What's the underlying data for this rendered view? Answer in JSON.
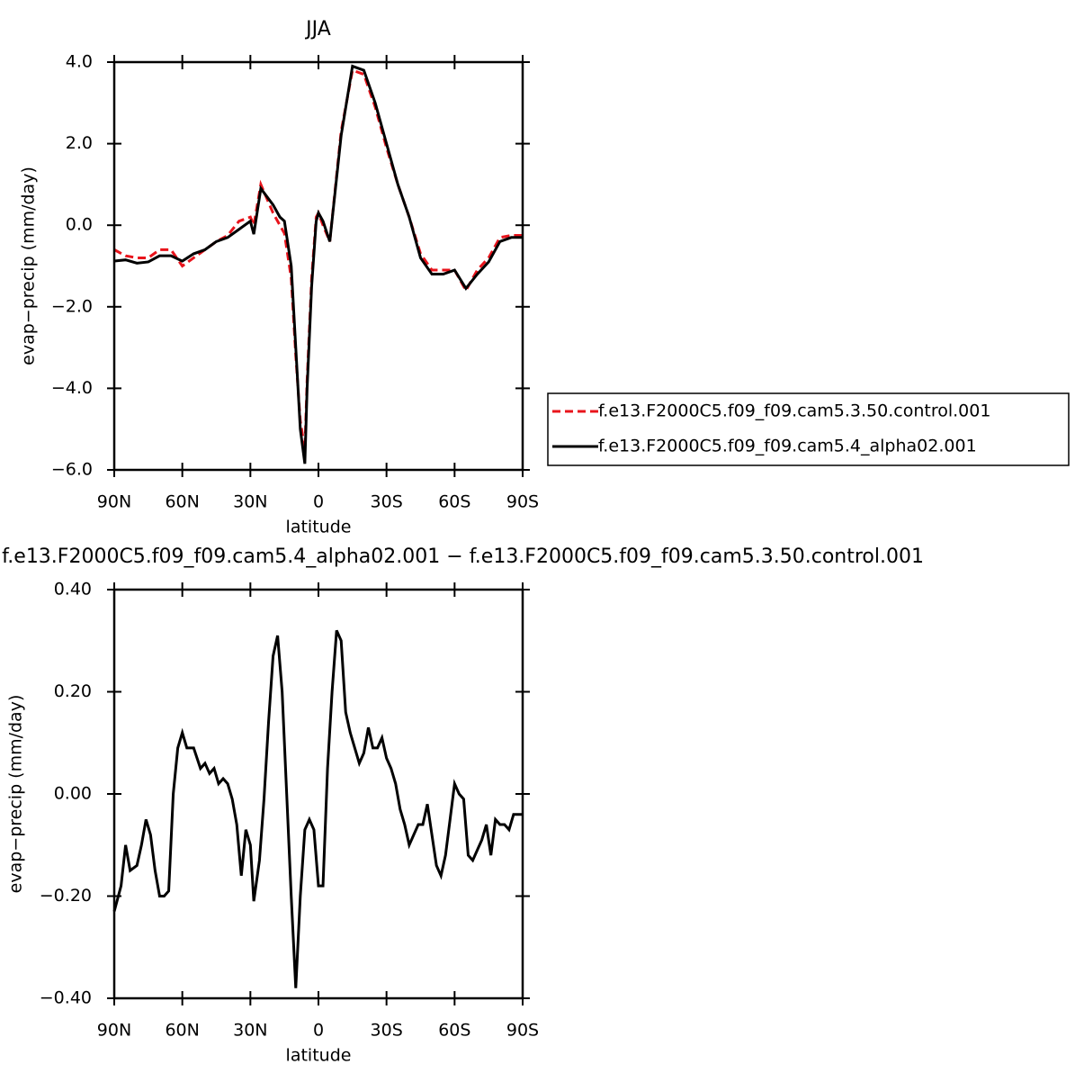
{
  "chart_data": [
    {
      "type": "line",
      "title": "JJA",
      "xlabel": "latitude",
      "ylabel": "evap−precip (mm/day)",
      "xlim": [
        90,
        -90
      ],
      "xticks": [
        {
          "value": 90,
          "label": "90N"
        },
        {
          "value": 60,
          "label": "60N"
        },
        {
          "value": 30,
          "label": "30N"
        },
        0,
        {
          "value": -30,
          "label": "30S"
        },
        {
          "value": -60,
          "label": "60S"
        },
        {
          "value": -90,
          "label": "90S"
        }
      ],
      "ylim": [
        -6,
        4
      ],
      "yticks": [
        {
          "value": -6,
          "label": "−6.0"
        },
        {
          "value": -4,
          "label": "−4.0"
        },
        {
          "value": -2,
          "label": "−2.0"
        },
        {
          "value": 0,
          "label": "0.0"
        },
        {
          "value": 2,
          "label": "2.0"
        },
        {
          "value": 4,
          "label": "4.0"
        }
      ],
      "legend": "right",
      "x": [
        90,
        85,
        80,
        75,
        70,
        65,
        60,
        55,
        50,
        45,
        40,
        35,
        30,
        28.5,
        25.4,
        20,
        17,
        15,
        12,
        10,
        8,
        6,
        5,
        3,
        1,
        0,
        -2,
        -5,
        -10,
        -15,
        -20,
        -25,
        -30,
        -35,
        -40,
        -45,
        -50,
        -55,
        -60,
        -65,
        -70,
        -75,
        -80,
        -85,
        -90
      ],
      "series": [
        {
          "name": "f.e13.F2000C5.f09_f09.cam5.3.50.control.001",
          "color": "#e8141c",
          "linestyle": "dashed",
          "values": [
            -0.6,
            -0.75,
            -0.8,
            -0.8,
            -0.6,
            -0.6,
            -1.0,
            -0.8,
            -0.6,
            -0.4,
            -0.25,
            0.1,
            0.2,
            0.0,
            1.0,
            0.3,
            0.0,
            -0.2,
            -1.3,
            -3.2,
            -4.8,
            -5.5,
            -3.8,
            -1.3,
            0.2,
            0.3,
            0.0,
            -0.4,
            2.3,
            3.8,
            3.7,
            2.9,
            1.9,
            1.0,
            0.2,
            -0.7,
            -1.1,
            -1.1,
            -1.1,
            -1.6,
            -1.1,
            -0.8,
            -0.3,
            -0.25,
            -0.25
          ]
        },
        {
          "name": "f.e13.F2000C5.f09_f09.cam5.4_alpha02.001",
          "color": "#000000",
          "linestyle": "solid",
          "values": [
            -0.88,
            -0.85,
            -0.93,
            -0.9,
            -0.75,
            -0.75,
            -0.88,
            -0.7,
            -0.6,
            -0.4,
            -0.3,
            -0.1,
            0.1,
            -0.22,
            0.9,
            0.5,
            0.2,
            0.1,
            -1.0,
            -3.0,
            -5.0,
            -5.85,
            -4.0,
            -1.5,
            0.1,
            0.3,
            0.1,
            -0.4,
            2.2,
            3.9,
            3.8,
            3.0,
            2.0,
            1.0,
            0.2,
            -0.8,
            -1.2,
            -1.2,
            -1.1,
            -1.55,
            -1.2,
            -0.9,
            -0.4,
            -0.3,
            -0.3
          ]
        }
      ]
    },
    {
      "type": "line",
      "title": "f.e13.F2000C5.f09_f09.cam5.4_alpha02.001 − f.e13.F2000C5.f09_f09.cam5.3.50.control.001",
      "xlabel": "latitude",
      "ylabel": "evap−precip (mm/day)",
      "xlim": [
        90,
        -90
      ],
      "xticks": [
        {
          "value": 90,
          "label": "90N"
        },
        {
          "value": 60,
          "label": "60N"
        },
        {
          "value": 30,
          "label": "30N"
        },
        0,
        {
          "value": -30,
          "label": "30S"
        },
        {
          "value": -60,
          "label": "60S"
        },
        {
          "value": -90,
          "label": "90S"
        }
      ],
      "ylim": [
        -0.4,
        0.4
      ],
      "yticks": [
        {
          "value": -0.4,
          "label": "−0.40"
        },
        {
          "value": -0.2,
          "label": "−0.20"
        },
        {
          "value": 0,
          "label": "0.00"
        },
        {
          "value": 0.2,
          "label": "0.20"
        },
        {
          "value": 0.4,
          "label": "0.40"
        }
      ],
      "x": [
        90,
        87,
        85,
        83,
        80,
        78,
        76,
        74,
        72,
        70,
        68,
        66,
        64,
        62,
        60,
        58,
        55,
        52,
        50,
        48,
        46,
        44,
        42,
        40,
        38,
        36,
        34,
        32,
        30,
        28.5,
        26,
        24,
        22,
        20,
        18,
        16,
        14,
        12,
        10,
        8,
        6,
        4,
        2,
        0,
        -2,
        -4,
        -6,
        -8,
        -10,
        -12,
        -14,
        -16,
        -18,
        -20,
        -22,
        -24,
        -26,
        -28,
        -30,
        -32,
        -34,
        -36,
        -38,
        -40,
        -42,
        -44,
        -46,
        -48,
        -50,
        -52,
        -54,
        -56,
        -58,
        -60,
        -62,
        -64,
        -66,
        -68,
        -70,
        -72,
        -74,
        -76,
        -78,
        -80,
        -82,
        -84,
        -86,
        -88,
        -90
      ],
      "series": [
        {
          "color": "#000000",
          "linestyle": "solid",
          "values": [
            -0.23,
            -0.18,
            -0.1,
            -0.15,
            -0.14,
            -0.1,
            -0.05,
            -0.08,
            -0.15,
            -0.2,
            -0.2,
            -0.19,
            0.0,
            0.09,
            0.12,
            0.09,
            0.09,
            0.05,
            0.06,
            0.04,
            0.05,
            0.02,
            0.03,
            0.02,
            -0.01,
            -0.06,
            -0.16,
            -0.07,
            -0.1,
            -0.21,
            -0.13,
            -0.01,
            0.14,
            0.27,
            0.31,
            0.2,
            0.0,
            -0.2,
            -0.38,
            -0.2,
            -0.07,
            -0.05,
            -0.07,
            -0.18,
            -0.18,
            0.05,
            0.2,
            0.32,
            0.3,
            0.16,
            0.12,
            0.09,
            0.06,
            0.08,
            0.13,
            0.09,
            0.09,
            0.11,
            0.07,
            0.05,
            0.02,
            -0.03,
            -0.06,
            -0.1,
            -0.08,
            -0.06,
            -0.06,
            -0.02,
            -0.08,
            -0.14,
            -0.16,
            -0.12,
            -0.05,
            0.02,
            0.0,
            -0.01,
            -0.12,
            -0.13,
            -0.11,
            -0.09,
            -0.06,
            -0.12,
            -0.05,
            -0.06,
            -0.06,
            -0.07,
            -0.04,
            -0.04,
            -0.04
          ]
        }
      ]
    }
  ]
}
